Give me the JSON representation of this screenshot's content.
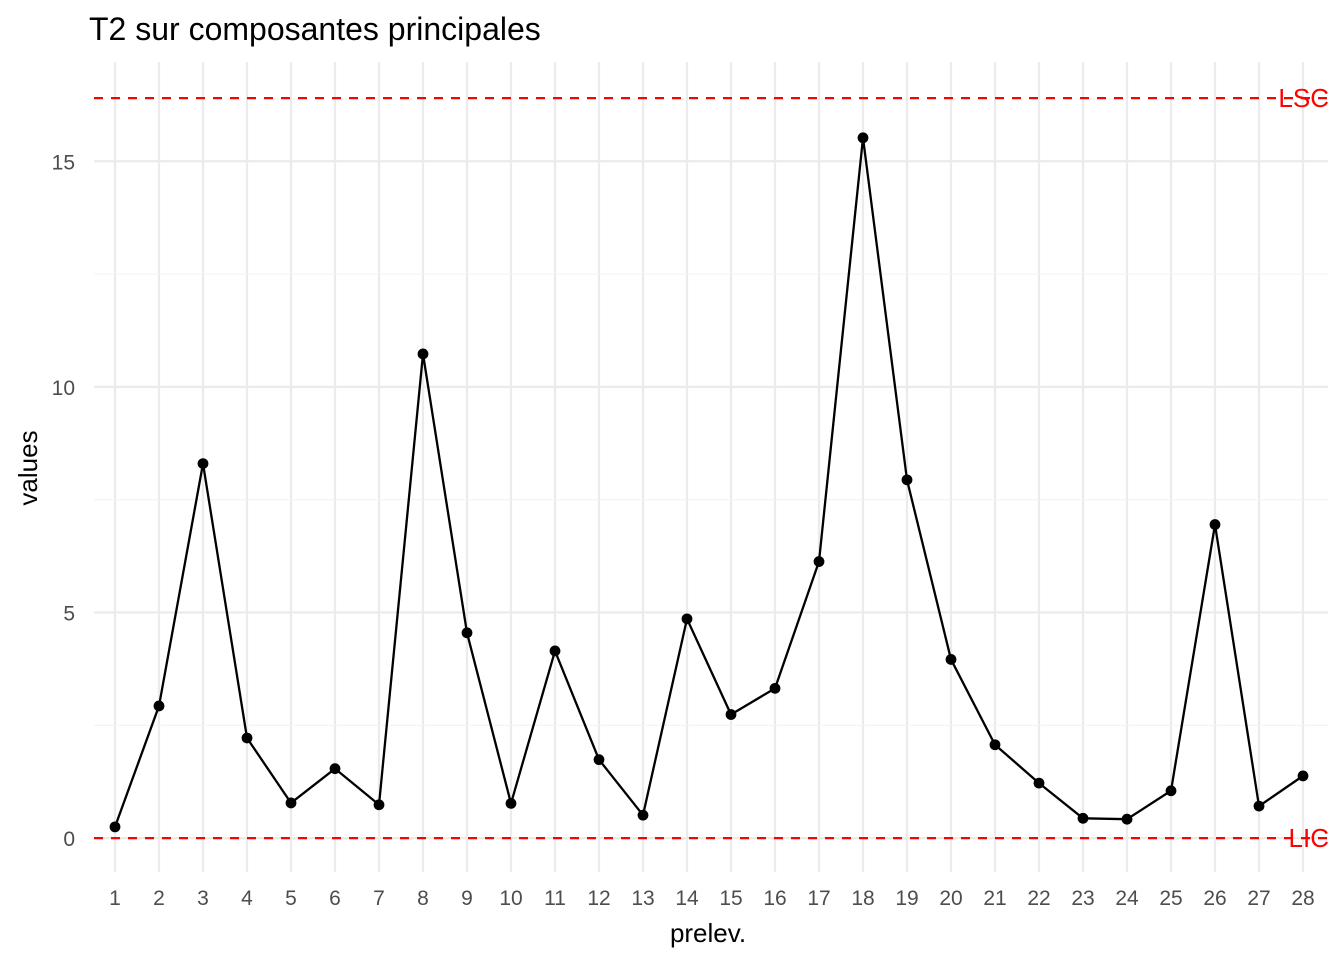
{
  "chart_data": {
    "type": "line",
    "title": "T2 sur composantes principales",
    "xlabel": "prelev.",
    "ylabel": "values",
    "categories": [
      "1",
      "2",
      "3",
      "4",
      "5",
      "6",
      "7",
      "8",
      "9",
      "10",
      "11",
      "12",
      "13",
      "14",
      "15",
      "16",
      "17",
      "18",
      "19",
      "20",
      "21",
      "22",
      "23",
      "24",
      "25",
      "26",
      "27",
      "28"
    ],
    "values": [
      0.25,
      2.93,
      8.3,
      2.22,
      0.78,
      1.54,
      0.74,
      10.73,
      4.55,
      0.77,
      4.15,
      1.74,
      0.51,
      4.86,
      2.74,
      3.32,
      6.13,
      15.52,
      7.94,
      3.96,
      2.07,
      1.22,
      0.44,
      0.42,
      1.05,
      6.95,
      0.71,
      1.38
    ],
    "yticks": [
      0,
      5,
      10,
      15
    ],
    "ylim": [
      -0.75,
      17.2
    ],
    "grid": true,
    "line_color": "#000000",
    "reference_lines": [
      {
        "label": "LSC",
        "value": 16.4,
        "color": "#ff0000",
        "style": "dashed"
      },
      {
        "label": "LIC",
        "value": 0,
        "color": "#ff0000",
        "style": "dashed"
      }
    ]
  }
}
